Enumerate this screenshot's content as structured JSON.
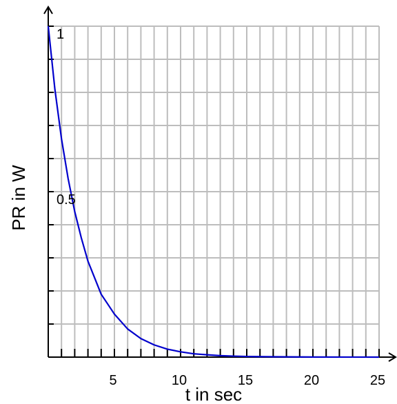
{
  "chart_data": {
    "type": "line",
    "xlabel": "t in sec",
    "ylabel": "PR in W",
    "xlim": [
      0,
      25
    ],
    "ylim": [
      0,
      1
    ],
    "x_ticks": [
      5,
      10,
      15,
      20,
      25
    ],
    "x_tick_labels": [
      "5",
      "10",
      "15",
      "20",
      "25"
    ],
    "y_ticks": [
      0.5,
      1
    ],
    "y_tick_labels": [
      "0.5",
      "1"
    ],
    "x_grid_step": 1,
    "y_grid_step": 0.1,
    "grid": true,
    "series": [
      {
        "color": "#0000cc",
        "x": [
          0,
          0.5,
          1,
          1.5,
          2,
          2.5,
          3,
          3.5,
          4,
          4.5,
          5,
          6,
          7,
          8,
          9,
          10,
          11,
          12,
          13,
          14,
          15,
          17,
          20,
          25
        ],
        "y": [
          1,
          0.81,
          0.66,
          0.54,
          0.44,
          0.36,
          0.29,
          0.24,
          0.19,
          0.16,
          0.13,
          0.085,
          0.056,
          0.037,
          0.024,
          0.016,
          0.01,
          0.007,
          0.0045,
          0.003,
          0.002,
          0.001,
          0.0003,
          0
        ]
      }
    ],
    "colors": {
      "grid": "#bdbdbd",
      "axis": "#000000"
    }
  }
}
